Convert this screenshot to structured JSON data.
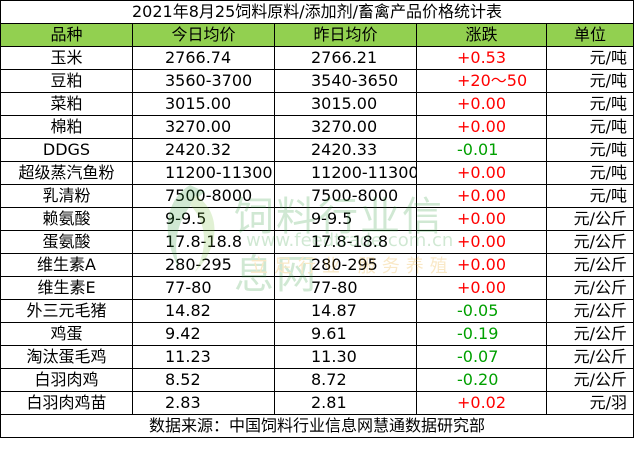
{
  "title": "2021年8月25饲料原料/添加剂/畜禽产品价格统计表",
  "headers": {
    "name": "品种",
    "today": "今日均价",
    "yesterday": "昨日均价",
    "change": "涨跌",
    "unit": "单位"
  },
  "rows": [
    {
      "name": "玉米",
      "today": "2766.74",
      "yesterday": "2766.21",
      "change": "+0.53",
      "unit": "元/吨",
      "trend": "up"
    },
    {
      "name": "豆粕",
      "today": "3560-3700",
      "yesterday": "3540-3650",
      "change": "+20～50",
      "unit": "元/吨",
      "trend": "up"
    },
    {
      "name": "菜粕",
      "today": "3015.00",
      "yesterday": "3015.00",
      "change": "+0.00",
      "unit": "元/吨",
      "trend": "up"
    },
    {
      "name": "棉粕",
      "today": "3270.00",
      "yesterday": "3270.00",
      "change": "+0.00",
      "unit": "元/吨",
      "trend": "up"
    },
    {
      "name": "DDGS",
      "today": "2420.32",
      "yesterday": "2420.33",
      "change": "-0.01",
      "unit": "元/吨",
      "trend": "down"
    },
    {
      "name": "超级蒸汽鱼粉",
      "today": "11200-11300",
      "yesterday": "11200-11300",
      "change": "+0.00",
      "unit": "元/吨",
      "trend": "up"
    },
    {
      "name": "乳清粉",
      "today": "7500-8000",
      "yesterday": "7500-8000",
      "change": "+0.00",
      "unit": "元/吨",
      "trend": "up"
    },
    {
      "name": "赖氨酸",
      "today": "9-9.5",
      "yesterday": "9-9.5",
      "change": "+0.00",
      "unit": "元/公斤",
      "trend": "up"
    },
    {
      "name": "蛋氨酸",
      "today": "17.8-18.8",
      "yesterday": "17.8-18.8",
      "change": "+0.00",
      "unit": "元/公斤",
      "trend": "up"
    },
    {
      "name": "维生素A",
      "today": "280-295",
      "yesterday": "280-295",
      "change": "+0.00",
      "unit": "元/公斤",
      "trend": "up"
    },
    {
      "name": "维生素E",
      "today": "77-80",
      "yesterday": "77-80",
      "change": "+0.00",
      "unit": "元/公斤",
      "trend": "up"
    },
    {
      "name": "外三元毛猪",
      "today": "14.82",
      "yesterday": "14.87",
      "change": "-0.05",
      "unit": "元/公斤",
      "trend": "down"
    },
    {
      "name": "鸡蛋",
      "today": "9.42",
      "yesterday": "9.61",
      "change": "-0.19",
      "unit": "元/公斤",
      "trend": "down"
    },
    {
      "name": "淘汰蛋毛鸡",
      "today": "11.23",
      "yesterday": "11.30",
      "change": "-0.07",
      "unit": "元/公斤",
      "trend": "down"
    },
    {
      "name": "白羽肉鸡",
      "today": "8.52",
      "yesterday": "8.72",
      "change": "-0.20",
      "unit": "元/公斤",
      "trend": "down"
    },
    {
      "name": "白羽肉鸡苗",
      "today": "2.83",
      "yesterday": "2.81",
      "change": "+0.02",
      "unit": "元/羽",
      "trend": "up"
    }
  ],
  "footer": "数据来源：中国饲料行业信息网慧通数据研究部",
  "watermark": {
    "cn": "饲料行业信息网",
    "url": "www.feedtrade.com.cn",
    "slogan": "立足行业 服务养殖"
  },
  "colors": {
    "header_bg": "#92d050",
    "up": "#ff0000",
    "down": "#00a000",
    "watermark": "#2e9a3c"
  }
}
